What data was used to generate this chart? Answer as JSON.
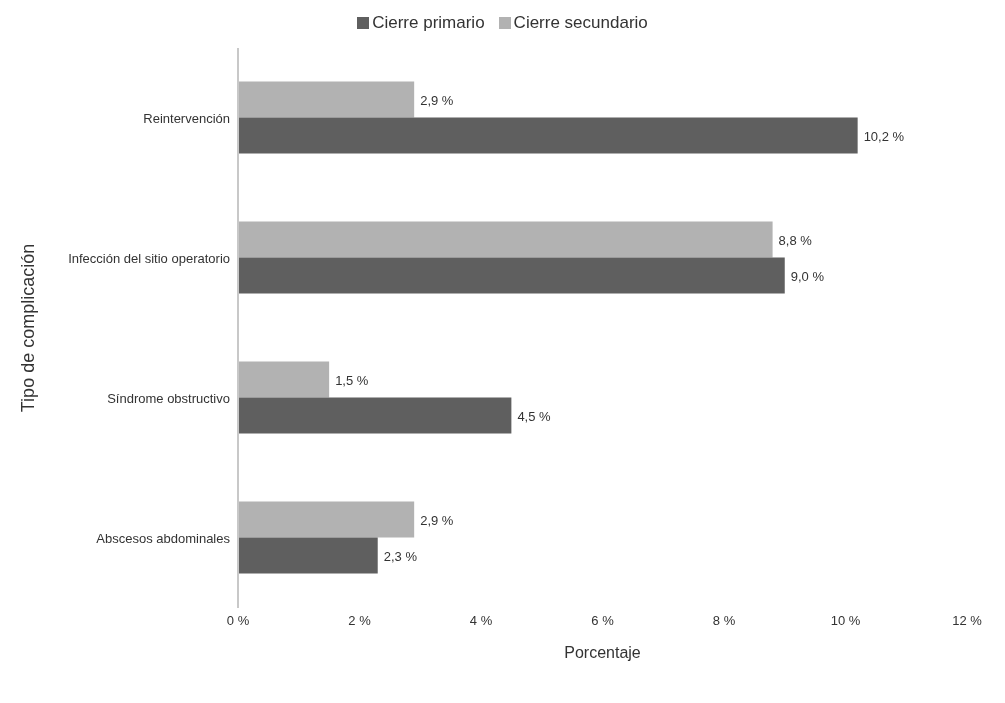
{
  "chart_data": {
    "type": "bar",
    "orientation": "horizontal",
    "xlabel": "Porcentaje",
    "ylabel": "Tipo de complicación",
    "categories": [
      "Reintervención",
      "Infección del sitio operatorio",
      "Síndrome obstructivo",
      "Abscesos abdominales"
    ],
    "series": [
      {
        "name": "Cierre primario",
        "color": "#5f5f5f",
        "values": [
          10.2,
          9.0,
          4.5,
          2.3
        ],
        "value_labels": [
          "10,2 %",
          "9,0 %",
          "4,5 %",
          "2,3 %"
        ]
      },
      {
        "name": "Cierre secundario",
        "color": "#b2b2b2",
        "values": [
          2.9,
          8.8,
          1.5,
          2.9
        ],
        "value_labels": [
          "2,9 %",
          "8,8 %",
          "1,5 %",
          "2,9 %"
        ]
      }
    ],
    "xlim": [
      0,
      12
    ],
    "xticks": [
      {
        "value": 0,
        "label": "0 %"
      },
      {
        "value": 2,
        "label": "2 %"
      },
      {
        "value": 4,
        "label": "4 %"
      },
      {
        "value": 6,
        "label": "6 %"
      },
      {
        "value": 8,
        "label": "8 %"
      },
      {
        "value": 10,
        "label": "10 %"
      },
      {
        "value": 12,
        "label": "12 %"
      }
    ],
    "grid": false,
    "legend": "top"
  }
}
